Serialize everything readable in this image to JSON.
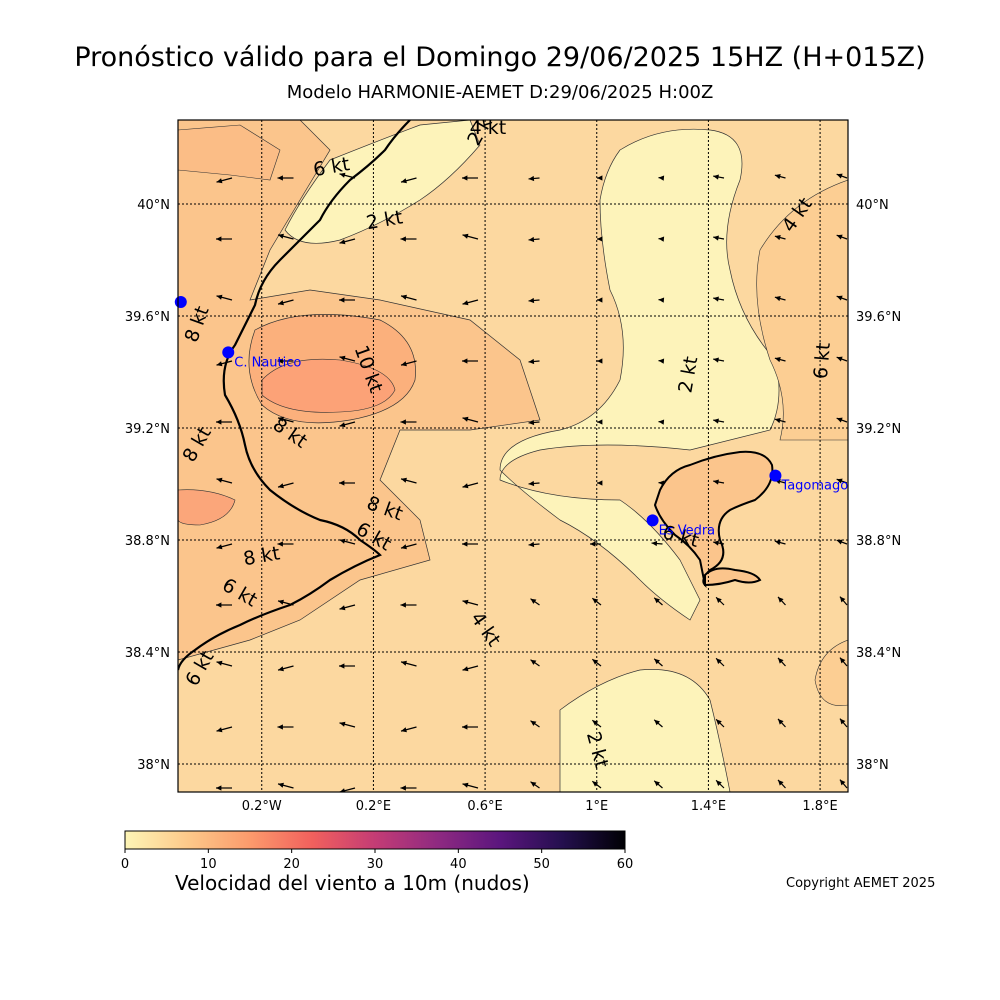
{
  "title": "Pronóstico válido para el Domingo 29/06/2025 15HZ (H+015Z)",
  "subtitle": "Modelo HARMONIE-AEMET D:29/06/2025 H:00Z",
  "map": {
    "lon_range": [
      -0.5,
      1.9
    ],
    "lat_range": [
      37.9,
      40.3
    ],
    "lon_ticks": [
      {
        "value": -0.2,
        "label": "0.2°W"
      },
      {
        "value": 0.2,
        "label": "0.2°E"
      },
      {
        "value": 0.6,
        "label": "0.6°E"
      },
      {
        "value": 1.0,
        "label": "1°E"
      },
      {
        "value": 1.4,
        "label": "1.4°E"
      },
      {
        "value": 1.8,
        "label": "1.8°E"
      }
    ],
    "lat_ticks": [
      {
        "value": 38.0,
        "label": "38°N"
      },
      {
        "value": 38.4,
        "label": "38.4°N"
      },
      {
        "value": 38.8,
        "label": "38.8°N"
      },
      {
        "value": 39.2,
        "label": "39.2°N"
      },
      {
        "value": 39.6,
        "label": "39.6°N"
      },
      {
        "value": 40.0,
        "label": "40°N"
      }
    ],
    "stations": [
      {
        "name": "C. Nautico",
        "lon": -0.32,
        "lat": 39.47
      },
      {
        "name": "Es Vedra",
        "lon": 1.2,
        "lat": 38.87
      },
      {
        "name": "Tagomago",
        "lon": 1.64,
        "lat": 39.03
      },
      {
        "name": "",
        "lon": -0.49,
        "lat": 39.65
      }
    ],
    "contour_labels": [
      {
        "text": "4 kt",
        "lon": 0.61,
        "lat": 40.27,
        "rot": 0
      },
      {
        "text": "2 kt",
        "lon": 0.59,
        "lat": 40.27,
        "rot": -60
      },
      {
        "text": "6 kt",
        "lon": 0.05,
        "lat": 40.13,
        "rot": -10
      },
      {
        "text": "2 kt",
        "lon": 0.24,
        "lat": 39.94,
        "rot": -10
      },
      {
        "text": "4 kt",
        "lon": 1.72,
        "lat": 39.96,
        "rot": -55
      },
      {
        "text": "8 kt",
        "lon": -0.43,
        "lat": 39.57,
        "rot": -70
      },
      {
        "text": "10 kt",
        "lon": 0.18,
        "lat": 39.41,
        "rot": 70
      },
      {
        "text": "2 kt",
        "lon": 1.33,
        "lat": 39.39,
        "rot": -80
      },
      {
        "text": "6 kt",
        "lon": 1.81,
        "lat": 39.44,
        "rot": -85
      },
      {
        "text": "8 kt",
        "lon": -0.1,
        "lat": 39.18,
        "rot": 35
      },
      {
        "text": "8 kt",
        "lon": -0.43,
        "lat": 39.14,
        "rot": -60
      },
      {
        "text": "8 kt",
        "lon": 0.24,
        "lat": 38.91,
        "rot": 20
      },
      {
        "text": "6 kt",
        "lon": 0.2,
        "lat": 38.81,
        "rot": 30
      },
      {
        "text": "6 kt",
        "lon": 1.3,
        "lat": 38.81,
        "rot": 15
      },
      {
        "text": "8 kt",
        "lon": -0.2,
        "lat": 38.74,
        "rot": -10
      },
      {
        "text": "6 kt",
        "lon": -0.28,
        "lat": 38.61,
        "rot": 30
      },
      {
        "text": "4 kt",
        "lon": 0.6,
        "lat": 38.48,
        "rot": 55
      },
      {
        "text": "6 kt",
        "lon": -0.42,
        "lat": 38.34,
        "rot": -60
      },
      {
        "text": "2 kt",
        "lon": 1.0,
        "lat": 38.05,
        "rot": 75
      }
    ]
  },
  "colorbar": {
    "min": 0,
    "max": 60,
    "ticks": [
      "0",
      "10",
      "20",
      "30",
      "40",
      "50",
      "60"
    ],
    "label": "Velocidad del viento a 10m (nudos)",
    "colors": [
      "#fdf5b6",
      "#fdc98a",
      "#fc9a6c",
      "#f1605d",
      "#c43c75",
      "#8f2a81",
      "#5b167e",
      "#240f4e",
      "#000004"
    ]
  },
  "copyright": "Copyright AEMET 2025"
}
